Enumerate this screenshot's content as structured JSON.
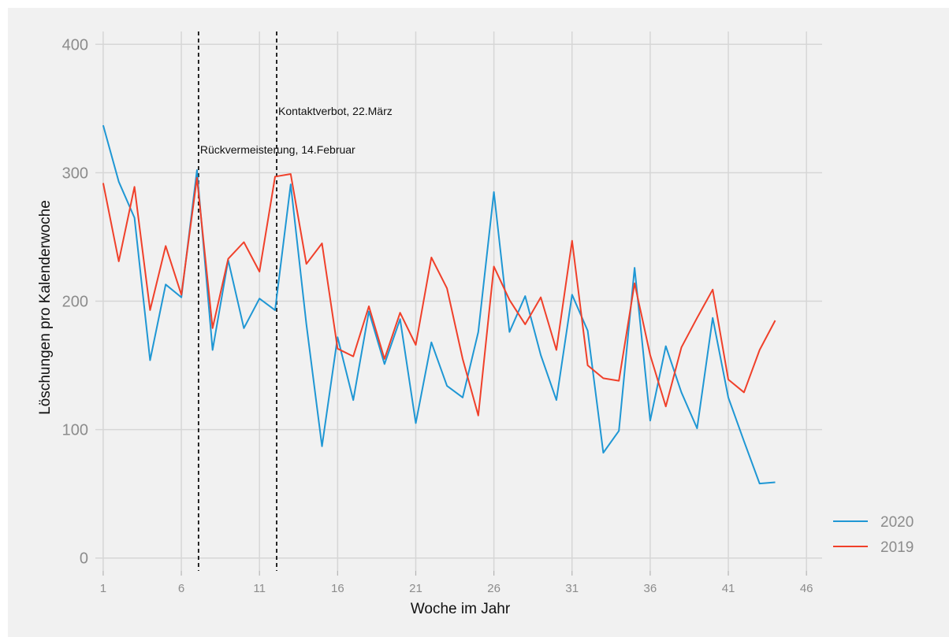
{
  "chart_data": {
    "type": "line",
    "xlabel": "Woche im Jahr",
    "ylabel": "Löschungen pro Kalenderwoche",
    "xlim": [
      0.5,
      47
    ],
    "ylim": [
      -10,
      410
    ],
    "xticks": [
      1,
      6,
      11,
      16,
      21,
      26,
      31,
      36,
      41,
      46
    ],
    "xtick_labels": [
      "1",
      "6",
      "11",
      "16",
      "21",
      "26",
      "31",
      "36",
      "41",
      "46"
    ],
    "yticks": [
      0,
      100,
      200,
      300,
      400
    ],
    "ytick_labels": [
      "0",
      "100",
      "200",
      "300",
      "400"
    ],
    "grid": true,
    "legend_position": "bottom-right",
    "series": [
      {
        "name": "2020",
        "color": "#1f97d4",
        "x": [
          1,
          2,
          3,
          4,
          5,
          6,
          7,
          8,
          9,
          10,
          11,
          12,
          13,
          14,
          15,
          16,
          17,
          18,
          19,
          20,
          21,
          22,
          23,
          24,
          25,
          26,
          27,
          28,
          29,
          30,
          31,
          32,
          33,
          34,
          35,
          36,
          37,
          38,
          39,
          40,
          41,
          42,
          43,
          44
        ],
        "y": [
          337,
          293,
          265,
          154,
          213,
          203,
          302,
          162,
          232,
          179,
          202,
          193,
          291,
          182,
          87,
          172,
          123,
          192,
          151,
          186,
          105,
          168,
          134,
          125,
          176,
          285,
          176,
          204,
          158,
          123,
          205,
          177,
          82,
          99,
          226,
          107,
          165,
          129,
          101,
          187,
          125,
          91,
          58,
          59
        ]
      },
      {
        "name": "2019",
        "color": "#f0402a",
        "x": [
          1,
          2,
          3,
          4,
          5,
          6,
          7,
          8,
          9,
          10,
          11,
          12,
          13,
          14,
          15,
          16,
          17,
          18,
          19,
          20,
          21,
          22,
          23,
          24,
          25,
          26,
          27,
          28,
          29,
          30,
          31,
          32,
          33,
          34,
          35,
          36,
          37,
          38,
          39,
          40,
          41,
          42,
          43,
          44
        ],
        "y": [
          292,
          231,
          289,
          193,
          243,
          205,
          296,
          179,
          233,
          246,
          223,
          297,
          299,
          229,
          245,
          163,
          157,
          196,
          155,
          191,
          166,
          234,
          210,
          155,
          111,
          227,
          201,
          182,
          203,
          162,
          247,
          150,
          140,
          138,
          214,
          158,
          118,
          164,
          187,
          209,
          139,
          129,
          162,
          185
        ]
      }
    ],
    "annotations": [
      {
        "x": 7.1,
        "label": "Rückvermeisterung, 14.Februar",
        "label_y": 318
      },
      {
        "x": 12.1,
        "label": "Kontaktverbot, 22.März",
        "label_y": 348
      }
    ]
  }
}
